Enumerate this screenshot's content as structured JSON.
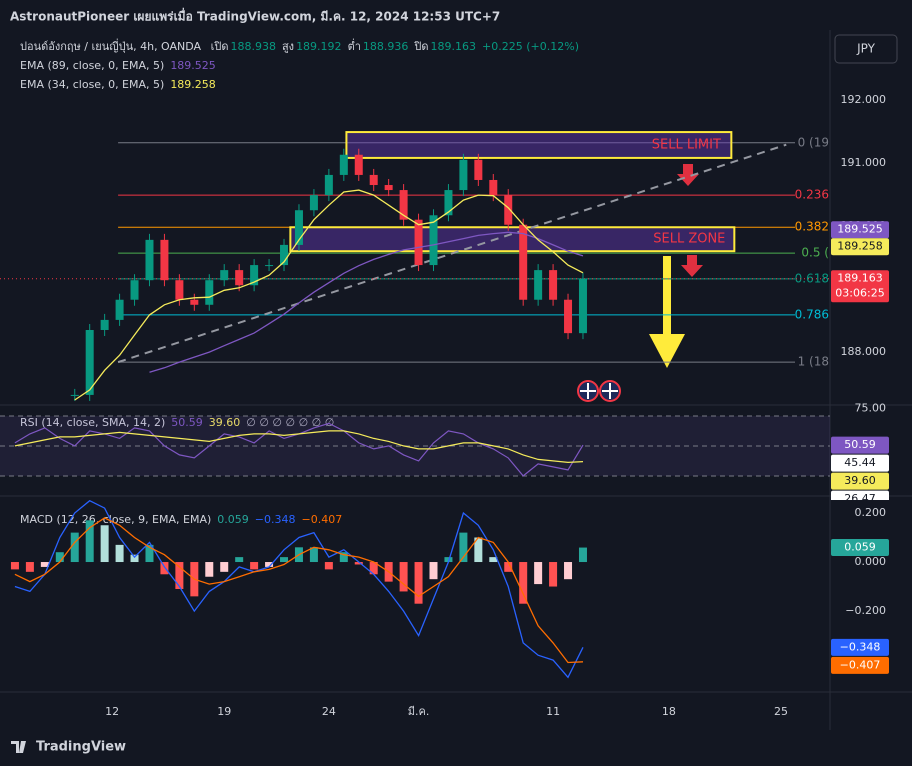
{
  "header": {
    "publisher": "AstronautPioneer เผยแพร่เมื่อ TradingView.com, มี.ค. 12, 2024 12:53 UTC+7",
    "currency_button": "JPY"
  },
  "footer": {
    "brand": "TradingView"
  },
  "chart_data": [
    {
      "type": "candlestick",
      "title": "ปอนด์อังกฤษ / เยนญี่ปุ่น, 4h, OANDA",
      "ohlc": [
        {
          "label": "เปิด",
          "value": 188.938
        },
        {
          "label": "สูง",
          "value": 189.192
        },
        {
          "label": "ต่ำ",
          "value": 188.936
        },
        {
          "label": "ปิด",
          "value": 189.163
        }
      ],
      "change": "+0.225 (+0.12%)",
      "up_color": "#089981",
      "down_color": "#f23645",
      "x": [
        -26,
        -22,
        -18,
        -14,
        -10,
        -6,
        -2,
        2,
        6,
        10,
        14,
        18,
        22,
        26,
        30,
        34,
        38,
        42,
        46,
        50,
        54,
        58,
        62,
        66,
        70,
        74,
        78,
        82,
        86,
        90,
        94,
        98,
        102,
        106,
        110,
        114,
        118,
        122,
        126
      ],
      "xlim": [
        -30,
        192.1
      ],
      "xticks": [
        {
          "value": 0,
          "label": "12"
        },
        {
          "value": 30,
          "label": "19"
        },
        {
          "value": 58,
          "label": "24"
        },
        {
          "value": 82,
          "label": "มี.ค."
        },
        {
          "value": 118,
          "label": "11"
        },
        {
          "value": 149,
          "label": "18"
        },
        {
          "value": 179,
          "label": "25"
        }
      ],
      "close": [
        null,
        null,
        null,
        null,
        187.32,
        188.35,
        188.51,
        188.83,
        189.14,
        189.78,
        189.14,
        188.83,
        188.75,
        189.14,
        189.3,
        189.06,
        189.38,
        189.38,
        189.7,
        190.25,
        190.49,
        190.81,
        191.13,
        190.81,
        190.65,
        190.57,
        190.1,
        189.38,
        190.17,
        190.57,
        191.05,
        190.73,
        190.49,
        190.02,
        188.83,
        189.3,
        188.83,
        188.3,
        189.163
      ],
      "countdown": "03:06:25",
      "series": [
        {
          "name": "EMA (89, close, 0, EMA, 5)",
          "color": "#7e57c2",
          "values": [
            null,
            null,
            null,
            null,
            null,
            null,
            null,
            null,
            null,
            187.68,
            187.75,
            187.84,
            187.92,
            188.0,
            188.1,
            188.2,
            188.3,
            188.45,
            188.6,
            188.78,
            188.95,
            189.1,
            189.25,
            189.37,
            189.47,
            189.55,
            189.62,
            189.66,
            189.7,
            189.75,
            189.8,
            189.85,
            189.88,
            189.9,
            189.88,
            189.8,
            189.7,
            189.6,
            189.525
          ]
        },
        {
          "name": "EMA (34, close, 0, EMA, 5)",
          "color": "#f5eb5b",
          "values": [
            null,
            null,
            null,
            null,
            187.24,
            187.4,
            187.71,
            187.95,
            188.27,
            188.59,
            188.75,
            188.83,
            188.86,
            188.87,
            188.98,
            189.02,
            189.11,
            189.22,
            189.43,
            189.78,
            190.1,
            190.33,
            190.54,
            190.57,
            190.49,
            190.33,
            190.17,
            190.02,
            190.06,
            190.22,
            190.41,
            190.49,
            190.48,
            190.29,
            190.02,
            189.78,
            189.59,
            189.38,
            189.258
          ]
        }
      ],
      "ylim": [
        187.16,
        193.03
      ],
      "yticks": [
        {
          "value": 188,
          "label": "188.000"
        },
        {
          "value": 189,
          "label": "189.000"
        },
        {
          "value": 190,
          "label": "190.000"
        },
        {
          "value": 191,
          "label": "191.000"
        },
        {
          "value": 192,
          "label": "192.000"
        }
      ],
      "grid": false,
      "fib_levels": [
        {
          "label": "0 (19",
          "price": 191.32,
          "color": "#787b86"
        },
        {
          "label": "0.236",
          "price": 190.49,
          "color": "#f23645"
        },
        {
          "label": "0.382",
          "price": 189.98,
          "color": "#ff9800"
        },
        {
          "label": "0.5 (",
          "price": 189.57,
          "color": "#4caf50"
        },
        {
          "label": "0.618",
          "price": 189.16,
          "color": "#089981"
        },
        {
          "label": "0.786",
          "price": 188.59,
          "color": "#00bcd4"
        },
        {
          "label": "1 (18",
          "price": 187.84,
          "color": "#787b86"
        }
      ],
      "zones": [
        {
          "label": "SELL LIMIT",
          "x": [
            62.7,
            165.7
          ],
          "y": [
            191.08,
            191.49
          ]
        },
        {
          "label": "SELL ZONE",
          "x": [
            47.7,
            166.5
          ],
          "y": [
            189.6,
            189.98
          ]
        }
      ],
      "trend_line": {
        "x": [
          1.6,
          180.4
        ],
        "y": [
          187.84,
          191.29
        ]
      }
    },
    {
      "type": "line",
      "title": "RSI (14, close, SMA, 14, 2)",
      "na_markers": "∅ ∅ ∅ ∅ ∅ ∅ ∅",
      "series": [
        {
          "color": "#7e57c2",
          "values": [
            52,
            58,
            62,
            55,
            50,
            60,
            58,
            55,
            62,
            60,
            50,
            44,
            42,
            50,
            58,
            56,
            52,
            60,
            55,
            58,
            62,
            65,
            60,
            52,
            48,
            50,
            44,
            40,
            52,
            60,
            58,
            52,
            48,
            42,
            30,
            38,
            36,
            34,
            50.59
          ]
        },
        {
          "color": "#f5eb5b",
          "last_label": "39.60",
          "values": [
            50,
            52,
            54,
            56,
            56,
            57,
            58,
            59,
            58,
            57,
            56,
            55,
            54,
            53,
            55,
            57,
            58,
            58,
            57,
            58,
            59,
            60,
            60,
            58,
            55,
            53,
            50,
            48,
            48,
            50,
            52,
            52,
            50,
            48,
            44,
            41,
            40,
            39,
            39.6
          ]
        }
      ],
      "levels": [
        70,
        50,
        30
      ],
      "tags": [
        45.44,
        26.47
      ],
      "ylim": [
        19.3,
        77.3
      ],
      "yticks": [
        {
          "value": 75,
          "label": "75.00"
        }
      ]
    },
    {
      "type": "macd",
      "title": "MACD (12, 26, close, 9, EMA, EMA)",
      "histogram": {
        "colors": {
          "pos_up": "#26a69a",
          "pos_down": "#b2dfdb",
          "neg_down": "#ff5252",
          "neg_up": "#ffcdd2"
        },
        "values": [
          -0.03,
          -0.04,
          -0.02,
          0.04,
          0.12,
          0.17,
          0.15,
          0.07,
          0.03,
          0.07,
          -0.05,
          -0.11,
          -0.14,
          -0.06,
          -0.04,
          0.02,
          -0.03,
          -0.02,
          0.02,
          0.06,
          0.06,
          -0.03,
          0.04,
          -0.01,
          -0.05,
          -0.08,
          -0.12,
          -0.17,
          -0.07,
          0.02,
          0.12,
          0.1,
          0.02,
          -0.04,
          -0.17,
          -0.09,
          -0.1,
          -0.07,
          0.059
        ]
      },
      "series": [
        {
          "color": "#2962ff",
          "last_label": "−0.348",
          "values": [
            -0.1,
            -0.12,
            -0.05,
            0.1,
            0.2,
            0.25,
            0.22,
            0.1,
            0.02,
            0.08,
            -0.02,
            -0.1,
            -0.2,
            -0.12,
            -0.08,
            -0.02,
            -0.04,
            -0.02,
            0.05,
            0.1,
            0.12,
            0.02,
            0.05,
            0.0,
            -0.05,
            -0.12,
            -0.2,
            -0.3,
            -0.15,
            0.0,
            0.2,
            0.15,
            0.05,
            -0.1,
            -0.33,
            -0.38,
            -0.4,
            -0.47,
            -0.348
          ]
        },
        {
          "color": "#ff6d00",
          "last_label": "−0.407",
          "values": [
            -0.05,
            -0.08,
            -0.05,
            0.0,
            0.08,
            0.14,
            0.18,
            0.15,
            0.1,
            0.06,
            0.03,
            -0.02,
            -0.07,
            -0.09,
            -0.08,
            -0.06,
            -0.04,
            -0.03,
            -0.01,
            0.03,
            0.06,
            0.05,
            0.03,
            0.02,
            0.0,
            -0.04,
            -0.09,
            -0.14,
            -0.1,
            -0.06,
            0.02,
            0.1,
            0.08,
            0.0,
            -0.13,
            -0.26,
            -0.33,
            -0.41,
            -0.407
          ]
        }
      ],
      "ylim": [
        -0.522,
        0.253
      ],
      "yticks": [
        {
          "value": 0.2,
          "label": "0.200"
        },
        {
          "value": 0,
          "label": "0.000"
        },
        {
          "value": -0.2,
          "label": "−0.200"
        }
      ]
    }
  ]
}
